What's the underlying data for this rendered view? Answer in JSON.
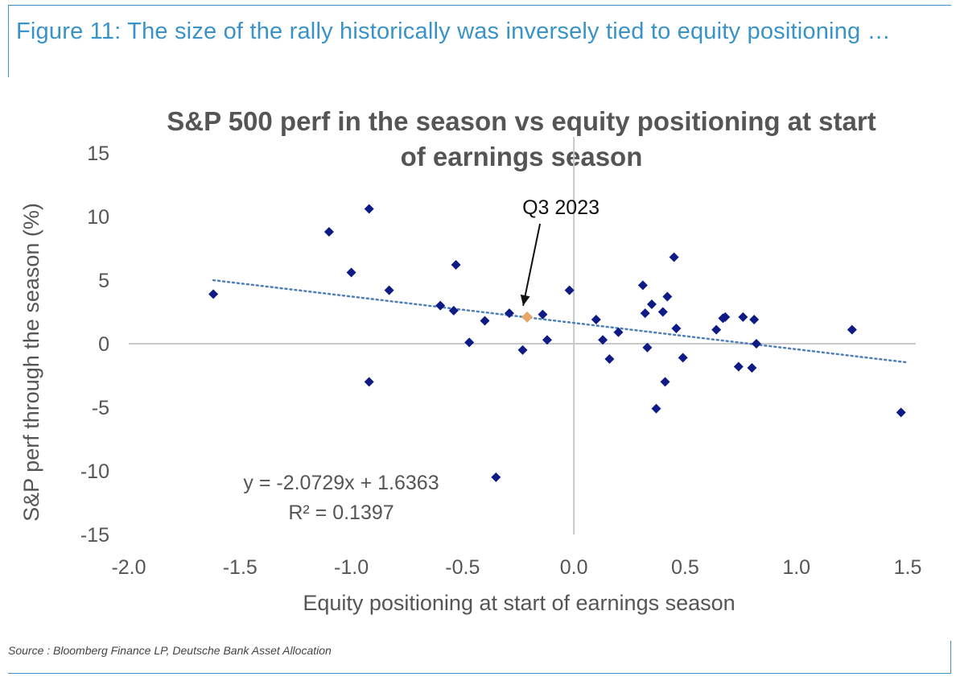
{
  "figure": {
    "title": "Figure 11: The size of the rally historically was inversely tied to equity positioning …",
    "source": "Source : Bloomberg Finance LP, Deutsche Bank Asset Allocation"
  },
  "colors": {
    "frame": "#3d8fc4",
    "figure_title": "#3a93c8",
    "points": "#0e1b85",
    "highlight": "#e3a86a",
    "trendline": "#4f7fb8",
    "axis": "#c8c8c8",
    "text": "#555555"
  },
  "chart_data": {
    "type": "scatter",
    "title_lines": [
      "S&P 500 perf in the season vs equity positioning at start",
      "of earnings season"
    ],
    "xlabel": "Equity positioning at start of earnings season",
    "ylabel": "S&P perf  through the season (%)",
    "xlim": [
      -2.0,
      1.5
    ],
    "ylim": [
      -15,
      15
    ],
    "xticks": [
      -2.0,
      -1.5,
      -1.0,
      -0.5,
      0.0,
      0.5,
      1.0,
      1.5
    ],
    "xtick_labels": [
      "-2.0",
      "-1.5",
      "-1.0",
      "-0.5",
      "0.0",
      "0.5",
      "1.0",
      "1.5"
    ],
    "yticks": [
      15,
      10,
      5,
      0,
      -5,
      -10,
      -15
    ],
    "ytick_labels": [
      "15",
      "10",
      "5",
      "0",
      "-5",
      "-10",
      "-15"
    ],
    "points": [
      {
        "x": -1.62,
        "y": 3.9
      },
      {
        "x": -1.1,
        "y": 8.8
      },
      {
        "x": -1.0,
        "y": 5.6
      },
      {
        "x": -0.92,
        "y": 10.6
      },
      {
        "x": -0.92,
        "y": -3.0
      },
      {
        "x": -0.83,
        "y": 4.2
      },
      {
        "x": -0.6,
        "y": 3.0
      },
      {
        "x": -0.53,
        "y": 6.2
      },
      {
        "x": -0.54,
        "y": 2.6
      },
      {
        "x": -0.47,
        "y": 0.1
      },
      {
        "x": -0.4,
        "y": 1.8
      },
      {
        "x": -0.35,
        "y": -10.5
      },
      {
        "x": -0.29,
        "y": 2.4
      },
      {
        "x": -0.23,
        "y": -0.5
      },
      {
        "x": -0.14,
        "y": 2.3
      },
      {
        "x": -0.12,
        "y": 0.3
      },
      {
        "x": -0.02,
        "y": 4.2
      },
      {
        "x": 0.1,
        "y": 1.9
      },
      {
        "x": 0.13,
        "y": 0.3
      },
      {
        "x": 0.16,
        "y": -1.2
      },
      {
        "x": 0.2,
        "y": 0.9
      },
      {
        "x": 0.31,
        "y": 4.6
      },
      {
        "x": 0.32,
        "y": 2.4
      },
      {
        "x": 0.33,
        "y": -0.3
      },
      {
        "x": 0.35,
        "y": 3.1
      },
      {
        "x": 0.37,
        "y": -5.1
      },
      {
        "x": 0.4,
        "y": 2.5
      },
      {
        "x": 0.41,
        "y": -3.0
      },
      {
        "x": 0.42,
        "y": 3.7
      },
      {
        "x": 0.45,
        "y": 6.8
      },
      {
        "x": 0.46,
        "y": 1.2
      },
      {
        "x": 0.49,
        "y": -1.1
      },
      {
        "x": 0.64,
        "y": 1.1
      },
      {
        "x": 0.67,
        "y": 2.0
      },
      {
        "x": 0.68,
        "y": 2.1
      },
      {
        "x": 0.74,
        "y": -1.8
      },
      {
        "x": 0.76,
        "y": 2.1
      },
      {
        "x": 0.8,
        "y": -1.9
      },
      {
        "x": 0.81,
        "y": 1.9
      },
      {
        "x": 0.82,
        "y": 0.0
      },
      {
        "x": 1.25,
        "y": 1.1
      },
      {
        "x": 1.47,
        "y": -5.4
      }
    ],
    "highlight": {
      "x": -0.21,
      "y": 2.1,
      "label": "Q3 2023"
    },
    "trendline": {
      "slope": -2.0729,
      "intercept": 1.6363,
      "x_range": [
        -1.62,
        1.5
      ],
      "equation_label": "y = -2.0729x + 1.6363",
      "r2_label": "R² = 0.1397"
    }
  }
}
